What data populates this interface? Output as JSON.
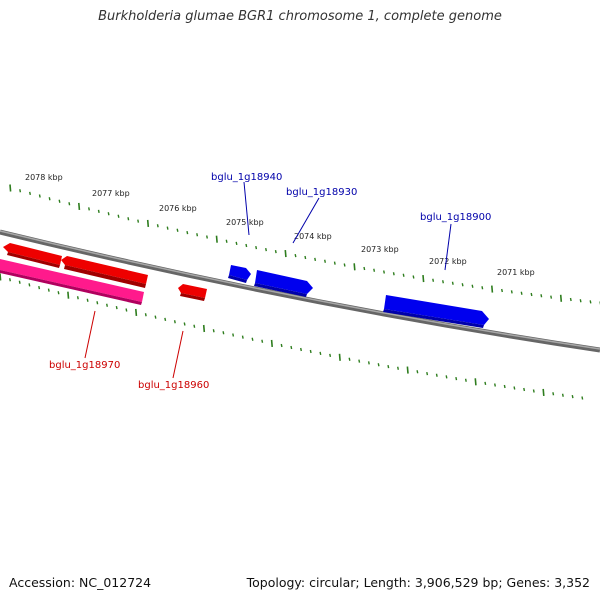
{
  "title": "Burkholderia glumae BGR1 chromosome 1, complete genome",
  "footer": {
    "accession": "Accession: NC_012724",
    "summary": "Topology: circular; Length: 3,906,529 bp; Genes: 3,352"
  },
  "colors": {
    "backbone": "#8a8a8a",
    "tick": "#2e7d1e",
    "forward_gene": "#0000ee",
    "reverse_gene": "#ee0000",
    "reverse_gene_alt": "#ff1a8c",
    "reverse_label": "#cc0000",
    "forward_label": "#0000aa"
  },
  "scale_labels": [
    "2078 kbp",
    "2077 kbp",
    "2076 kbp",
    "2075 kbp",
    "2074 kbp",
    "2073 kbp",
    "2072 kbp",
    "2071 kbp"
  ],
  "gene_labels": {
    "forward": [
      "bglu_1g18940",
      "bglu_1g18930",
      "bglu_1g18900"
    ],
    "reverse": [
      "bglu_1g18970",
      "bglu_1g18960"
    ]
  }
}
